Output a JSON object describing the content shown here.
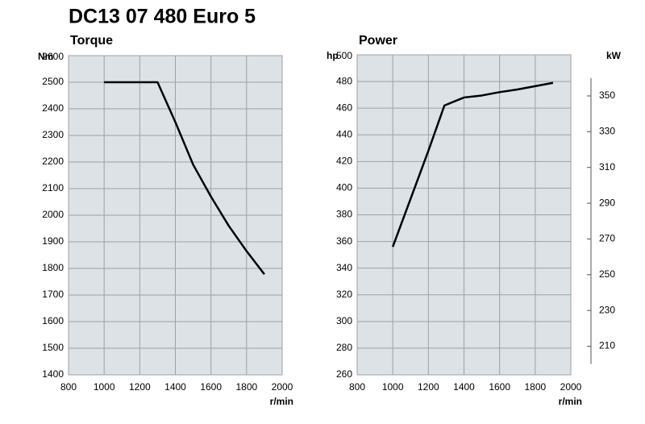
{
  "title": "DC13 07 480 Euro 5",
  "chart_data": [
    {
      "type": "line",
      "title": "Torque",
      "y_label": "Nm",
      "x_label": "r/min",
      "x": [
        1000,
        1100,
        1200,
        1300,
        1400,
        1500,
        1600,
        1700,
        1800,
        1900
      ],
      "series": [
        {
          "name": "Torque",
          "color": "#000000",
          "values": [
            2500,
            2500,
            2500,
            2500,
            2350,
            2190,
            2070,
            1960,
            1865,
            1778
          ]
        }
      ],
      "xlim": [
        800,
        2000
      ],
      "xticks": [
        800,
        1000,
        1200,
        1400,
        1600,
        1800,
        2000
      ],
      "ylim": [
        1400,
        2600
      ],
      "yticks": [
        1400,
        1500,
        1600,
        1700,
        1800,
        1900,
        2000,
        2100,
        2200,
        2300,
        2400,
        2500,
        2600
      ],
      "grid": true
    },
    {
      "type": "line",
      "title": "Power",
      "y_label": "hp",
      "y2_label": "kW",
      "x_label": "r/min",
      "x": [
        1000,
        1100,
        1200,
        1290,
        1400,
        1500,
        1600,
        1700,
        1800,
        1900
      ],
      "series": [
        {
          "name": "Power",
          "color": "#000000",
          "values": [
            356,
            392,
            428,
            462,
            468,
            469.5,
            472,
            474,
            476.5,
            479
          ]
        }
      ],
      "xlim": [
        800,
        2000
      ],
      "xticks": [
        800,
        1000,
        1200,
        1400,
        1600,
        1800,
        2000
      ],
      "ylim": [
        260,
        500
      ],
      "yticks": [
        260,
        280,
        300,
        320,
        340,
        360,
        380,
        400,
        420,
        440,
        460,
        480,
        500
      ],
      "y2lim": [
        194,
        373
      ],
      "y2ticks": [
        210,
        230,
        250,
        270,
        290,
        310,
        330,
        350
      ],
      "grid": true
    }
  ]
}
